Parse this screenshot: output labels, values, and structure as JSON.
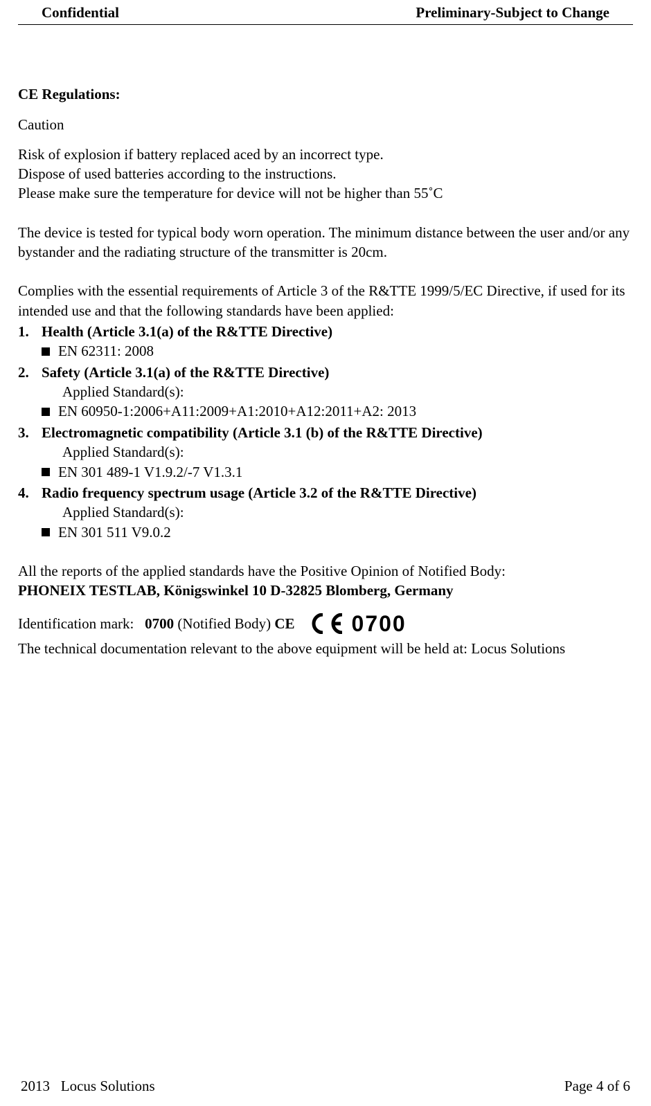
{
  "header": {
    "left": "Confidential",
    "right": "Preliminary-Subject to Change"
  },
  "body": {
    "section_title": "CE Regulations:",
    "caution": "Caution",
    "risk_lines": [
      "Risk of explosion if battery replaced aced by an incorrect type.",
      "Dispose of used batteries according to the instructions.",
      "Please make sure the temperature for device will not be higher than 55˚C"
    ],
    "body_worn": "The device is tested for typical body worn operation. The minimum distance between the user and/or any bystander and the radiating structure of the transmitter is 20cm.",
    "complies": "Complies with the essential requirements of Article 3 of the R&TTE 1999/5/EC Directive, if used for its intended use and that the following standards have been applied:",
    "applied_label": "Applied Standard(s):",
    "items": [
      {
        "num": "1.",
        "title": "Health (Article 3.1(a) of the R&TTE Directive)",
        "show_applied": false,
        "standards": [
          "EN 62311: 2008"
        ]
      },
      {
        "num": "2.",
        "title": "Safety (Article 3.1(a) of the R&TTE Directive)",
        "show_applied": true,
        "standards": [
          "EN 60950-1:2006+A11:2009+A1:2010+A12:2011+A2: 2013"
        ]
      },
      {
        "num": "3.",
        "title": "Electromagnetic compatibility (Article 3.1 (b) of the R&TTE Directive)",
        "show_applied": true,
        "standards": [
          "EN 301 489-1 V1.9.2/-7 V1.3.1"
        ]
      },
      {
        "num": "4.",
        "title": "Radio frequency spectrum usage (Article 3.2 of the R&TTE Directive)",
        "show_applied": true,
        "standards": [
          "EN 301 511 V9.0.2"
        ]
      }
    ],
    "notified_intro": "All the reports of the applied standards have the Positive Opinion of Notified Body:",
    "notified_body": "PHONEIX TESTLAB, Königswinkel 10 D-32825 Blomberg, Germany",
    "id_mark_label": "Identification mark:   ",
    "id_mark_num": "0700",
    "id_mark_suffix1": " (Notified Body) ",
    "id_mark_ce": "CE",
    "ce_number": "0700",
    "tech_doc": "The technical documentation relevant to the above equipment will be held at: Locus Solutions"
  },
  "footer": {
    "left": "2013   Locus Solutions",
    "right": "Page 4 of 6"
  }
}
